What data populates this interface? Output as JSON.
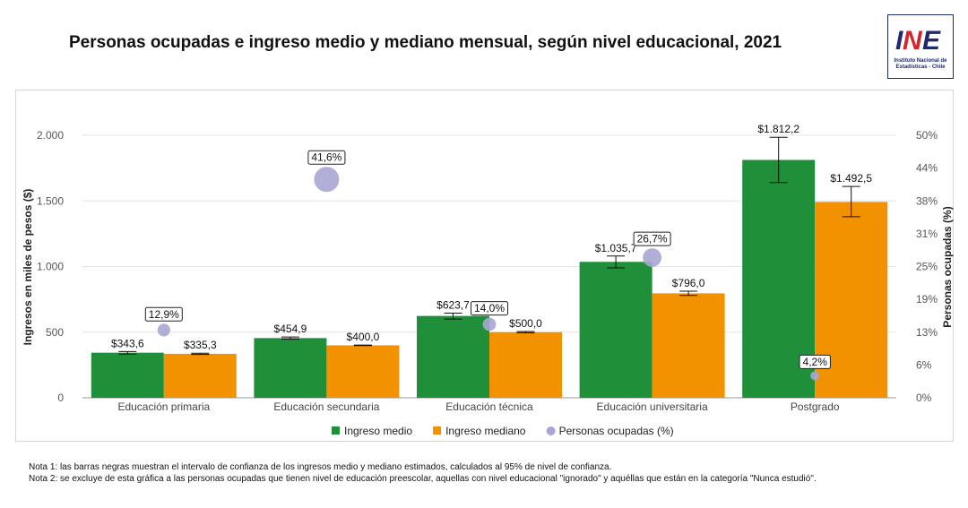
{
  "title": "Personas ocupadas e ingreso medio y mediano mensual, según nivel educacional, 2021",
  "logo": {
    "text": "INE",
    "line1": "Instituto Nacional de",
    "line2": "Estadísticas - Chile",
    "colors": {
      "navy": "#1d2a6b",
      "red": "#d8232a"
    }
  },
  "chart_data": {
    "type": "bar",
    "title": "Personas ocupadas e ingreso medio y mediano mensual, según nivel educacional, 2021",
    "categories": [
      "Educación primaria",
      "Educación secundaria",
      "Educación técnica",
      "Educación universitaria",
      "Postgrado"
    ],
    "ylabel": "Ingresos en miles de pesos ($)",
    "y2label": "Personas ocupadas (%)",
    "ylim": [
      0,
      2000
    ],
    "yticks": [
      0,
      500,
      1000,
      1500,
      2000
    ],
    "ytick_labels": [
      "0",
      "500",
      "1.000",
      "1.500",
      "2.000"
    ],
    "y2lim": [
      0,
      50
    ],
    "y2ticks": [
      0,
      6.25,
      12.5,
      18.75,
      25,
      31.25,
      37.5,
      43.75,
      50
    ],
    "y2tick_labels": [
      "0%",
      "6%",
      "13%",
      "19%",
      "25%",
      "31%",
      "38%",
      "44%",
      "50%"
    ],
    "grid": true,
    "legend_position": "bottom",
    "series": [
      {
        "name": "Ingreso medio",
        "kind": "bar",
        "color": "#1f8f3a",
        "values": [
          343.6,
          454.9,
          623.7,
          1035.7,
          1812.2
        ],
        "labels": [
          "$343,6",
          "$454,9",
          "$623,7",
          "$1.035,7",
          "$1.812,2"
        ],
        "ci_low": [
          333,
          446,
          600,
          990,
          1640
        ],
        "ci_high": [
          352,
          463,
          645,
          1080,
          1985
        ]
      },
      {
        "name": "Ingreso mediano",
        "kind": "bar",
        "color": "#f39200",
        "values": [
          335.3,
          400.0,
          500.0,
          796.0,
          1492.5
        ],
        "labels": [
          "$335,3",
          "$400,0",
          "$500,0",
          "$796,0",
          "$1.492,5"
        ],
        "ci_low": [
          330,
          398,
          495,
          780,
          1380
        ],
        "ci_high": [
          340,
          402,
          505,
          812,
          1610
        ]
      },
      {
        "name": "Personas ocupadas (%)",
        "kind": "bubble",
        "axis": "right",
        "color": "#a8a6d3",
        "values": [
          12.9,
          41.6,
          14.0,
          26.7,
          4.2
        ],
        "labels": [
          "12,9%",
          "41,6%",
          "14,0%",
          "26,7%",
          "4,2%"
        ]
      }
    ]
  },
  "notes": [
    "Nota 1: las barras negras muestran el intervalo de confianza de los ingresos medio y mediano estimados, calculados al 95% de nivel de confianza.",
    "Nota 2: se excluye de esta gráfica a las personas ocupadas que tienen nivel de educación preescolar, aquellas con nivel educacional \"ignorado\" y aquéllas que están en la categoría \"Nunca estudió\"."
  ]
}
